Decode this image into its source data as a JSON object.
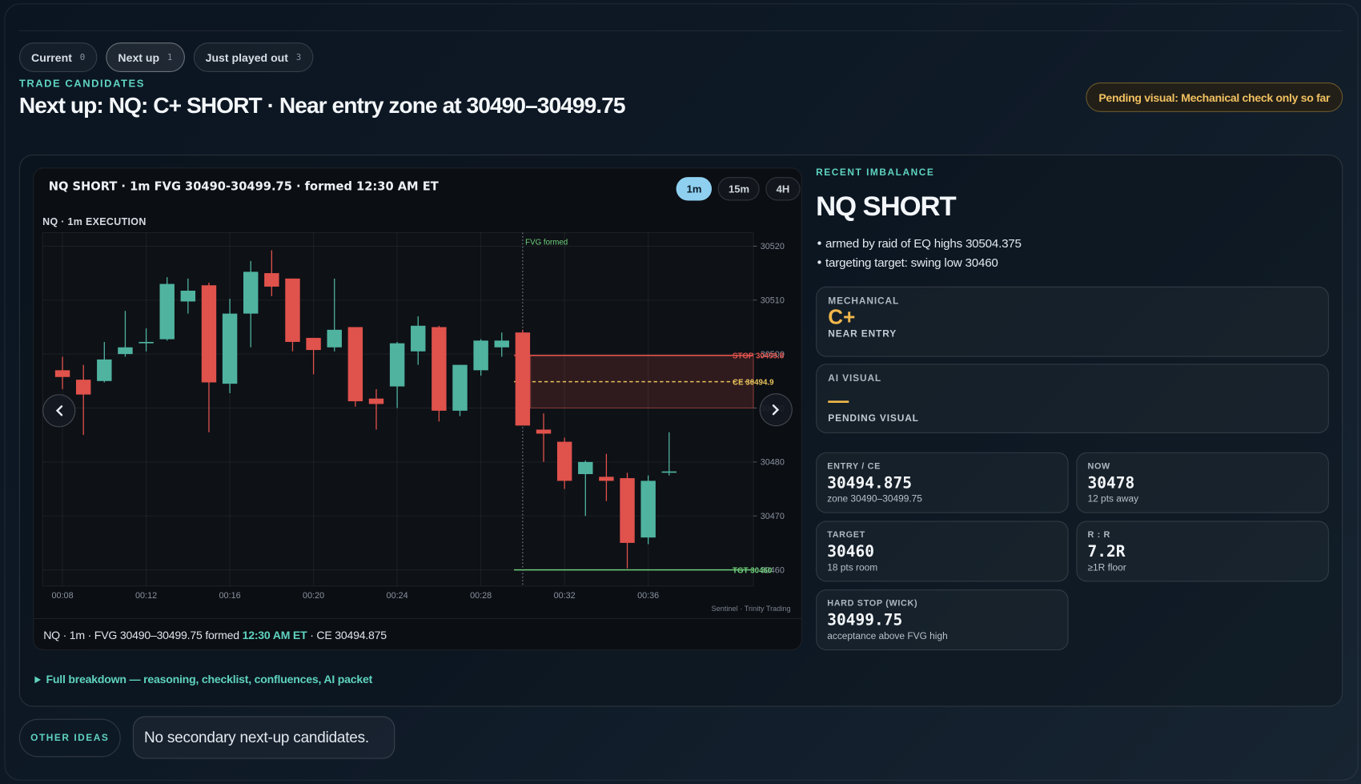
{
  "tabs": [
    {
      "label": "Current",
      "count": 0
    },
    {
      "label": "Next up",
      "count": 1
    },
    {
      "label": "Just played out",
      "count": 3
    }
  ],
  "active_tab": 1,
  "section_label": "TRADE CANDIDATES",
  "headline": "Next up: NQ: C+ SHORT · Near entry zone at 30490–30499.75",
  "badge": "Pending visual: Mechanical check only so far",
  "timeframes": [
    "1m",
    "15m",
    "4H"
  ],
  "active_timeframe": 0,
  "chart_data": {
    "type": "candlestick",
    "title": "NQ SHORT · 1m FVG 30490-30499.75 · formed 12:30 AM ET",
    "subtitle": "NQ · 1m EXECUTION",
    "categories": [
      "00:08",
      null,
      null,
      null,
      "00:12",
      null,
      null,
      null,
      "00:16",
      null,
      null,
      null,
      "00:20",
      null,
      null,
      null,
      "00:24",
      null,
      null,
      null,
      "00:28",
      null,
      null,
      null,
      "00:32",
      null,
      null,
      null,
      "00:36",
      null
    ],
    "open": [
      30497,
      30495.25,
      30495,
      30500,
      30502,
      30502.75,
      30509.75,
      30512.75,
      30494.5,
      30507.5,
      30515,
      30514,
      30503,
      30501.25,
      30505,
      30491.75,
      30494,
      30500.5,
      30505,
      30489.5,
      30497,
      30501.25,
      30504,
      30486,
      30483.75,
      30477.75,
      30477.25,
      30477,
      30466,
      30478
    ],
    "high": [
      30499.5,
      30498,
      30502.25,
      30508,
      30504.75,
      30514.25,
      30514,
      30513.25,
      30510.25,
      30517.25,
      30519.25,
      30514,
      30503,
      30514,
      30505,
      30493.5,
      30502.25,
      30507,
      30505.25,
      30498,
      30502.75,
      30504,
      30504.5,
      30489,
      30484.5,
      30480.25,
      30481.5,
      30478,
      30477.5,
      30485.5
    ],
    "low": [
      30493.5,
      30485,
      30494.75,
      30499.5,
      30500.5,
      30502.5,
      30507.5,
      30485.5,
      30492.75,
      30501.25,
      30510.75,
      30500.5,
      30496.25,
      30500.5,
      30490.25,
      30486,
      30490,
      30498,
      30487.5,
      30488.5,
      30496,
      30499.5,
      30486.75,
      30480,
      30475,
      30470,
      30472.75,
      30460.25,
      30464.75,
      30477.5
    ],
    "close": [
      30495.75,
      30492.5,
      30499,
      30501.25,
      30502.25,
      30513,
      30511.75,
      30494.75,
      30507.5,
      30515.25,
      30512.5,
      30502.25,
      30500.75,
      30504.5,
      30491.25,
      30490.75,
      30502,
      30505.25,
      30489.5,
      30498,
      30502.5,
      30502.5,
      30486.75,
      30485.25,
      30476.5,
      30480,
      30476.5,
      30465,
      30476.5,
      30478.25
    ],
    "up_color": "#4fb3a0",
    "down_color": "#e0524c",
    "ylim": [
      30457,
      30522.5
    ],
    "yticks": [
      30460,
      30470,
      30480,
      30490,
      30500,
      30510,
      30520
    ],
    "grid": true,
    "zone": {
      "low": 30490,
      "high": 30499.75,
      "color": "#e0524c"
    },
    "levels": [
      {
        "value": 30499.75,
        "label": "STOP 30499.8",
        "color": "#e0524c",
        "style": "solid"
      },
      {
        "value": 30494.875,
        "label": "CE 30494.9",
        "color": "#e8c15a",
        "style": "dashed"
      },
      {
        "value": 30460,
        "label": "TGT 30460",
        "color": "#6fd07a",
        "style": "solid"
      }
    ],
    "annotation": {
      "text": "FVG formed",
      "x_index": 22
    },
    "watermark": "Sentinel · Trinity Trading"
  },
  "caption": {
    "before": "NQ · 1m · FVG 30490–30499.75 formed ",
    "highlight": "12:30 AM ET",
    "after": " · CE 30494.875"
  },
  "panel": {
    "label": "RECENT IMBALANCE",
    "title": "NQ SHORT",
    "bullets": [
      "armed by raid of EQ highs 30504.375",
      "targeting target: swing low 30460"
    ]
  },
  "mechanical": {
    "label": "MECHANICAL",
    "grade": "C+",
    "note": "NEAR ENTRY"
  },
  "ai_visual": {
    "label": "AI VISUAL",
    "grade": "—",
    "note": "PENDING VISUAL"
  },
  "stats": [
    {
      "label": "ENTRY / CE",
      "value": 30494.875,
      "note": "zone 30490–30499.75"
    },
    {
      "label": "NOW",
      "value": 30478,
      "note": "12 pts away"
    },
    {
      "label": "TARGET",
      "value": 30460,
      "note": "18 pts room"
    },
    {
      "label": "R : R",
      "value": "7.2R",
      "note": "≥1R floor"
    },
    {
      "label": "HARD STOP (WICK)",
      "value": 30499.75,
      "note": "acceptance above FVG high"
    }
  ],
  "breakdown": "Full breakdown — reasoning, checklist, confluences, AI packet",
  "other_ideas": {
    "label": "OTHER IDEAS",
    "text": "No secondary next-up candidates."
  }
}
